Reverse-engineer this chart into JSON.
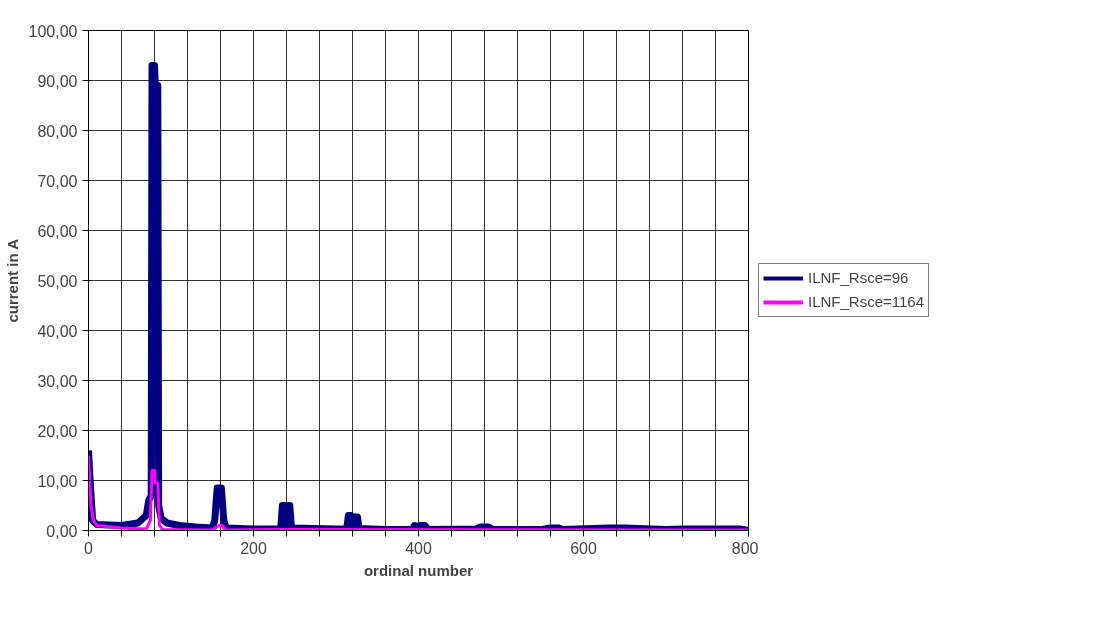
{
  "chart_data": {
    "type": "line",
    "xlabel": "ordinal number",
    "ylabel": "current in A",
    "xlim": [
      0,
      800
    ],
    "ylim": [
      0,
      100
    ],
    "xticks": [
      0,
      {
        "value": 40,
        "label": null
      },
      {
        "value": 80,
        "label": null
      },
      {
        "value": 120,
        "label": null
      },
      {
        "value": 160,
        "label": null
      },
      200,
      {
        "value": 240,
        "label": null
      },
      {
        "value": 280,
        "label": null
      },
      {
        "value": 320,
        "label": null
      },
      {
        "value": 360,
        "label": null
      },
      400,
      {
        "value": 440,
        "label": null
      },
      {
        "value": 480,
        "label": null
      },
      {
        "value": 520,
        "label": null
      },
      {
        "value": 560,
        "label": null
      },
      600,
      {
        "value": 640,
        "label": null
      },
      {
        "value": 680,
        "label": null
      },
      {
        "value": 720,
        "label": null
      },
      {
        "value": 760,
        "label": null
      },
      800
    ],
    "yticks": [
      {
        "value": 0,
        "label": "0,00"
      },
      {
        "value": 10,
        "label": "10,00"
      },
      {
        "value": 20,
        "label": "20,00"
      },
      {
        "value": 30,
        "label": "30,00"
      },
      {
        "value": 40,
        "label": "40,00"
      },
      {
        "value": 50,
        "label": "50,00"
      },
      {
        "value": 60,
        "label": "60,00"
      },
      {
        "value": 70,
        "label": "70,00"
      },
      {
        "value": 80,
        "label": "80,00"
      },
      {
        "value": 90,
        "label": "90,00"
      },
      {
        "value": 100,
        "label": "100,00"
      }
    ],
    "grid": true,
    "legend": "right",
    "marker": "none",
    "line_style": "solid",
    "series": [
      {
        "name": "ILNF_Rsce=96",
        "color": "#000080",
        "x": [
          0,
          2,
          5,
          10,
          40,
          60,
          70,
          73,
          76,
          77,
          80,
          81,
          84,
          85,
          88,
          95,
          110,
          130,
          150,
          153,
          156,
          161,
          164,
          167,
          200,
          233,
          235,
          238,
          239,
          241,
          244,
          246,
          300,
          313,
          315,
          318,
          320,
          323,
          326,
          328,
          360,
          393,
          395,
          398,
          403,
          408,
          411,
          470,
          475,
          485,
          490,
          550,
          560,
          570,
          575,
          630,
          650,
          700,
          720,
          790,
          800
        ],
        "values": [
          16,
          10,
          2,
          1.2,
          1,
          1.5,
          3,
          6,
          7,
          93,
          93,
          89,
          89,
          5,
          2.5,
          1.5,
          1,
          0.7,
          0.5,
          2,
          8.5,
          8.5,
          2,
          0.5,
          0.3,
          0.3,
          5,
          5,
          1,
          5,
          5,
          0.5,
          0.3,
          0.3,
          3,
          3,
          0.5,
          2.7,
          2.7,
          0.4,
          0.2,
          0.2,
          1,
          0.8,
          1,
          1,
          0.2,
          0.3,
          0.7,
          0.7,
          0.2,
          0.2,
          0.5,
          0.5,
          0.2,
          0.5,
          0.5,
          0.2,
          0.3,
          0.3,
          0
        ]
      },
      {
        "name": "ILNF_Rsce=1164",
        "color": "#ff00ff",
        "x": [
          0,
          3,
          6,
          10,
          40,
          70,
          75,
          77,
          80,
          81,
          84,
          86,
          90,
          150,
          158,
          162,
          166,
          240,
          800
        ],
        "values": [
          15,
          5,
          2,
          1,
          0.5,
          0.3,
          2,
          12,
          12,
          9.5,
          9.5,
          1,
          0.2,
          0.1,
          1,
          1,
          0.1,
          0.2,
          0.1
        ]
      }
    ]
  }
}
